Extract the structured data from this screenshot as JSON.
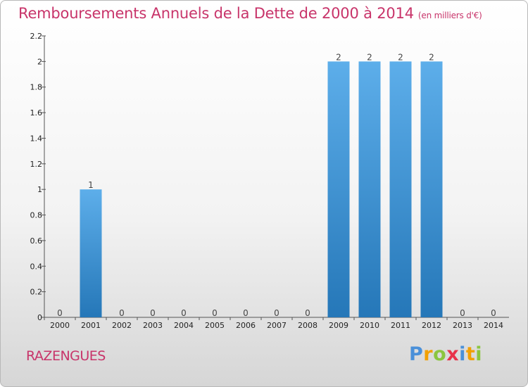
{
  "header": {
    "title": "Remboursements Annuels de la Dette de 2000 à 2014",
    "unit": "(en milliers d'€)"
  },
  "footer": {
    "commune": "RAZENGUES",
    "logo": [
      "P",
      "r",
      "o",
      "x",
      "i",
      "t",
      "i"
    ]
  },
  "colors": {
    "title": "#c8346a",
    "bar_top": "#5daeea",
    "bar_bottom": "#2577b8",
    "logo": [
      "#4a90d9",
      "#f2a000",
      "#8bc53f",
      "#e8334a",
      "#4a90d9",
      "#f2a000",
      "#8bc53f"
    ]
  },
  "chart_data": {
    "type": "bar",
    "categories": [
      "2000",
      "2001",
      "2002",
      "2003",
      "2004",
      "2005",
      "2006",
      "2007",
      "2008",
      "2009",
      "2010",
      "2011",
      "2012",
      "2013",
      "2014"
    ],
    "values": [
      0,
      1,
      0,
      0,
      0,
      0,
      0,
      0,
      0,
      2,
      2,
      2,
      2,
      0,
      0
    ],
    "data_labels": [
      "0",
      "1",
      "0",
      "0",
      "0",
      "0",
      "0",
      "0",
      "0",
      "2",
      "2",
      "2",
      "2",
      "0",
      "0"
    ],
    "yticks": [
      "0",
      "0.2",
      "0.4",
      "0.6",
      "0.8",
      "1",
      "1.2",
      "1.4",
      "1.6",
      "1.8",
      "2",
      "2.2"
    ],
    "ylim": [
      0,
      2.2
    ],
    "grid": false
  }
}
